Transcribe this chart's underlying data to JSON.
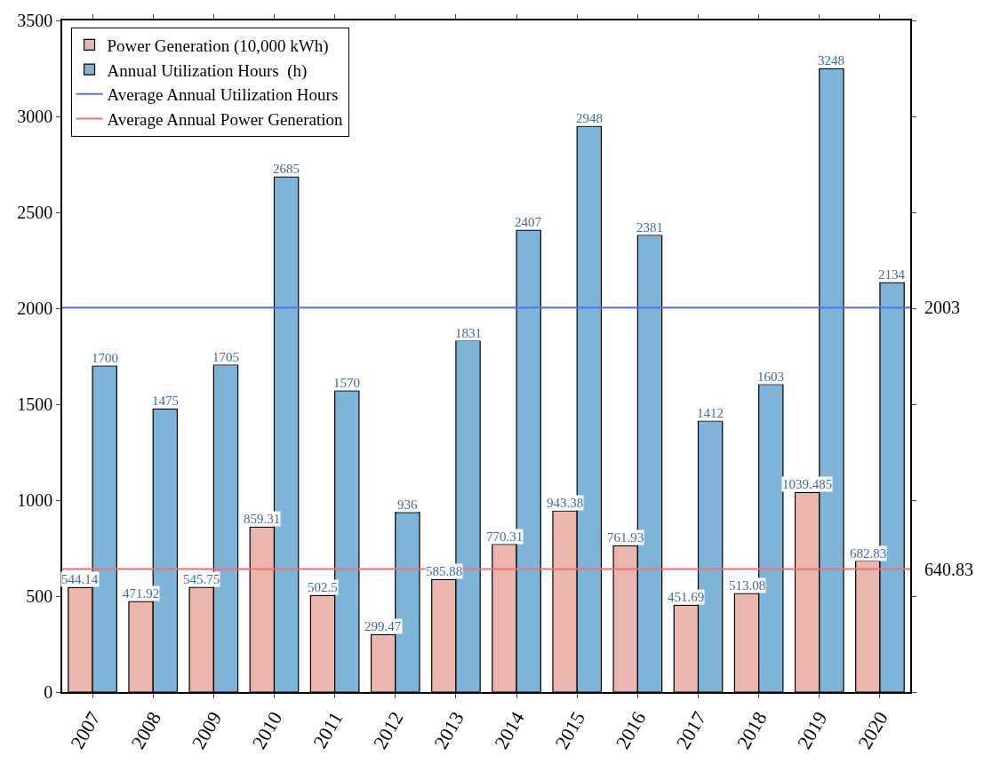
{
  "chart_data": {
    "type": "bar",
    "categories": [
      "2007",
      "2008",
      "2009",
      "2010",
      "2011",
      "2012",
      "2013",
      "2014",
      "2015",
      "2016",
      "2017",
      "2018",
      "2019",
      "2020"
    ],
    "series": [
      {
        "name": "Power Generation (10,000 kWh)",
        "color": "#ebb6ad",
        "values": [
          544.14,
          471.92,
          545.75,
          859.31,
          502.5,
          299.47,
          585.88,
          770.31,
          943.38,
          761.93,
          451.69,
          513.08,
          1039.485,
          682.83
        ]
      },
      {
        "name": "Annual Utilization Hours  (h)",
        "color": "#7db4d7",
        "values": [
          1700,
          1475,
          1705,
          2685,
          1570,
          936,
          1831,
          2407,
          2948,
          2381,
          1412,
          1603,
          3248,
          2134
        ]
      }
    ],
    "ref_lines": [
      {
        "axis": "y",
        "value": 2003,
        "label": "Average Annual Utilization Hours",
        "color": "#5a6cf2"
      },
      {
        "axis": "y",
        "value": 640.83,
        "label": "Average Annual Power Generation",
        "color": "#f07070"
      }
    ],
    "ylim": [
      0,
      3500
    ],
    "yticks": [
      0,
      500,
      1000,
      1500,
      2000,
      2500,
      3000,
      3500
    ],
    "annotations": [
      "2003",
      "640.83"
    ],
    "data_labels": true,
    "legend": "top left"
  }
}
